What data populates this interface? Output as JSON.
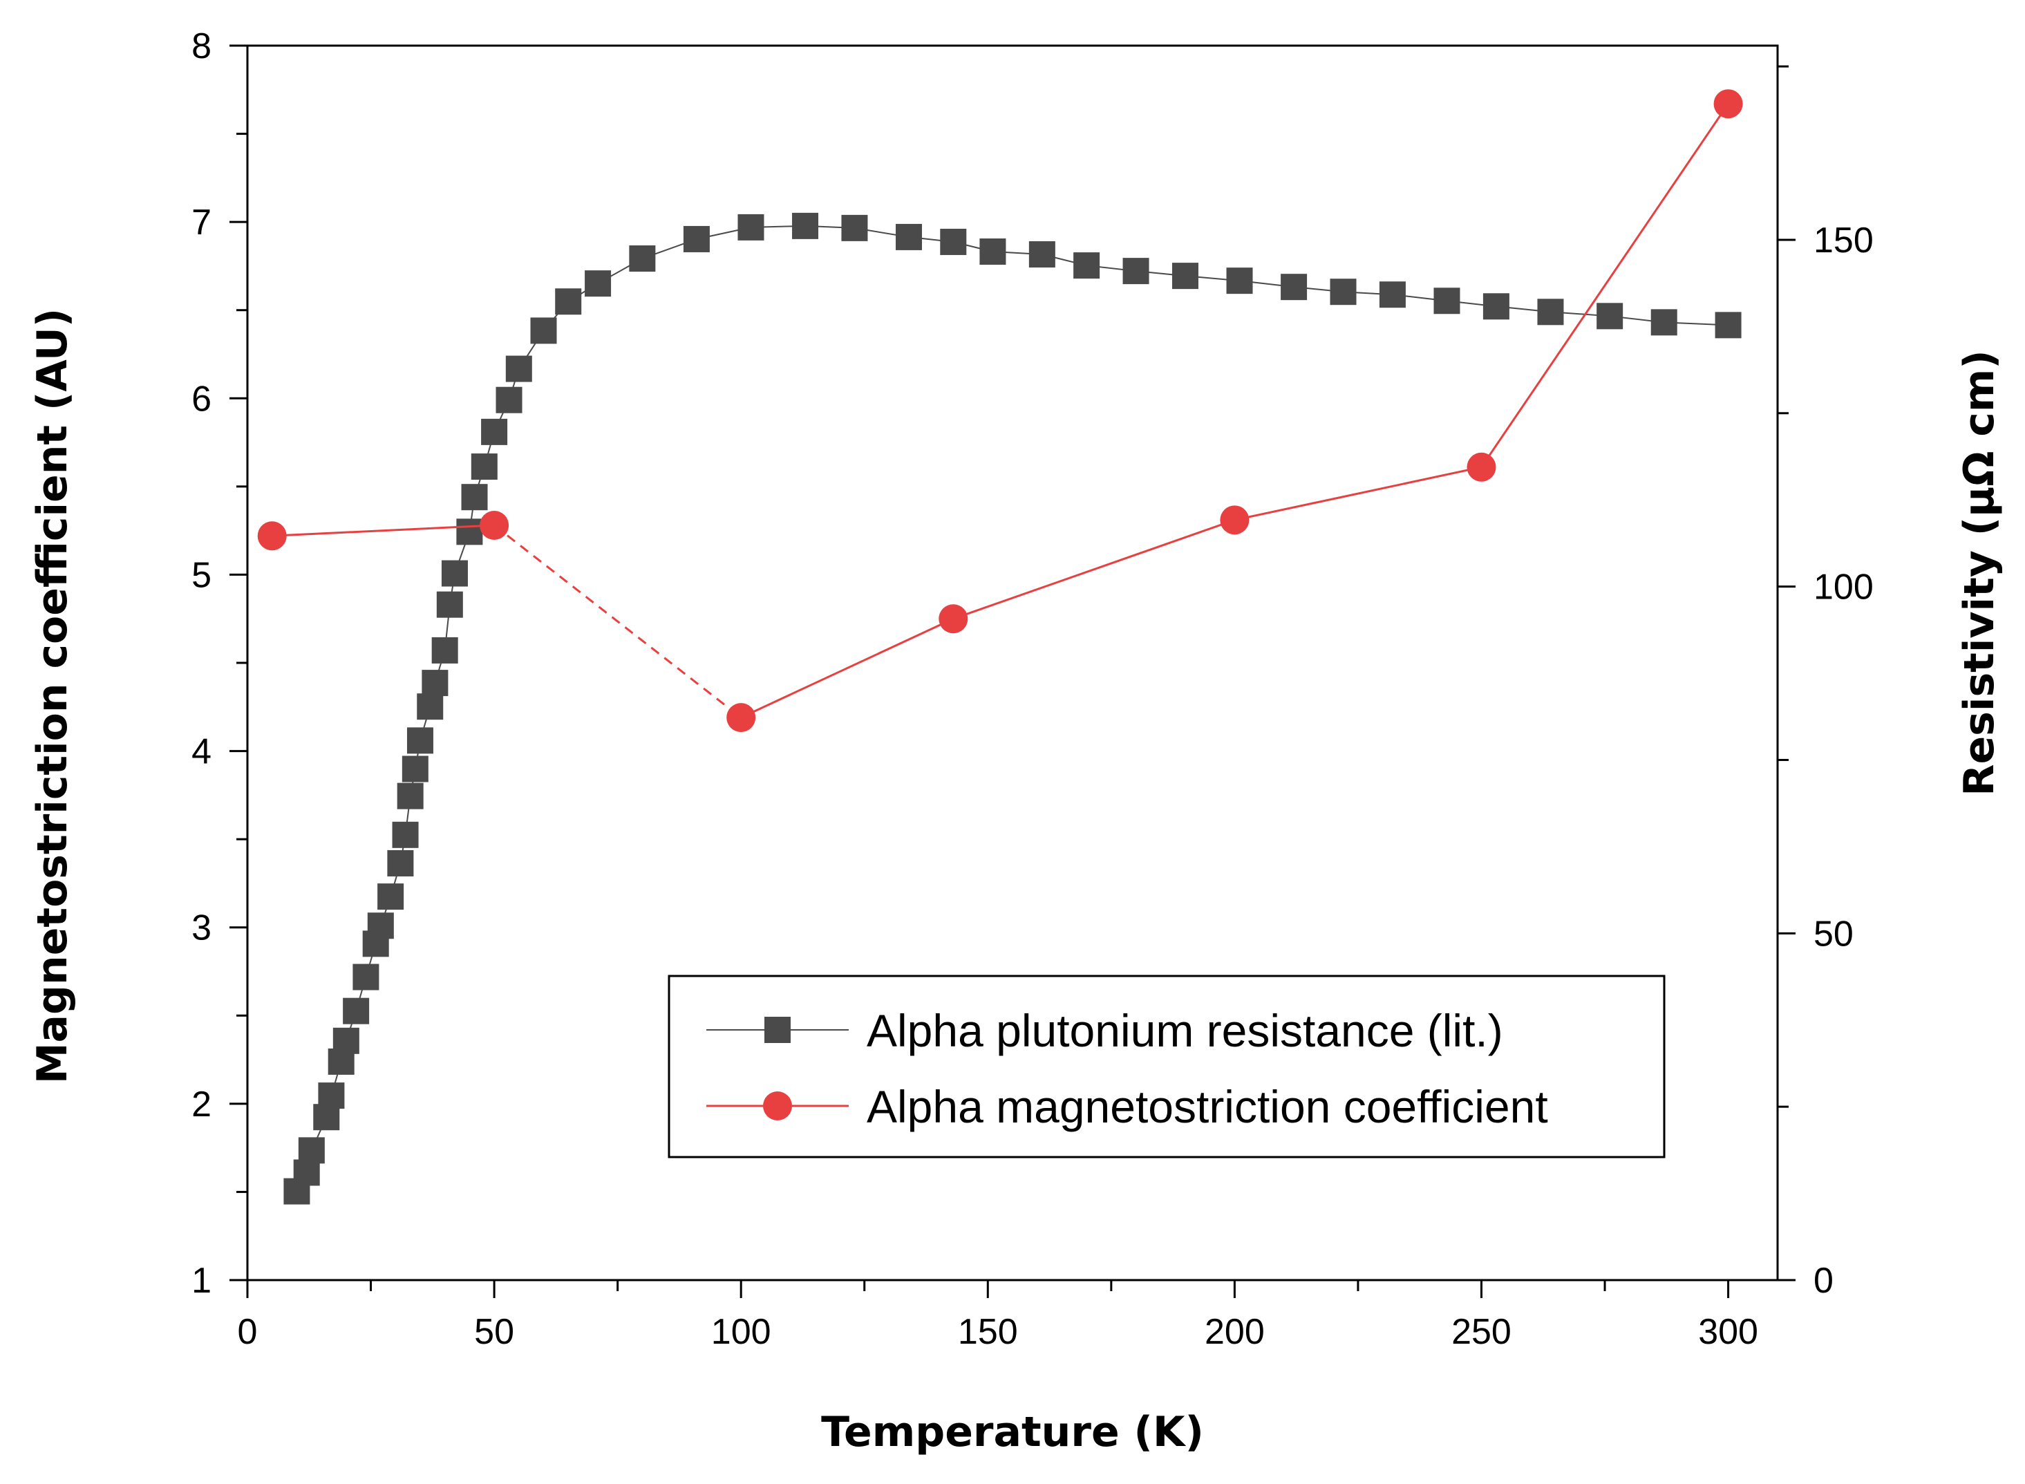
{
  "chart_data": {
    "type": "line",
    "xlabel": "Temperature (K)",
    "ylabel_left": "Magnetostriction coefficient (AU)",
    "ylabel_right": "Resistivity (μΩ cm)",
    "xlim": [
      0,
      310
    ],
    "ylim_left": [
      1,
      8
    ],
    "ylim_right": [
      0,
      178
    ],
    "x_ticks": [
      0,
      50,
      100,
      150,
      200,
      250,
      300
    ],
    "y_left_ticks": [
      1,
      2,
      3,
      4,
      5,
      6,
      7,
      8
    ],
    "y_right_ticks": [
      0,
      50,
      100,
      150
    ],
    "x_tick_labels": [
      "0",
      "50",
      "100",
      "150",
      "200",
      "250",
      "300"
    ],
    "y_left_tick_labels": [
      "1",
      "2",
      "3",
      "4",
      "5",
      "6",
      "7",
      "8"
    ],
    "y_right_tick_labels": [
      "0",
      "50",
      "100",
      "150"
    ],
    "grid": false,
    "legend_position": "bottom-right",
    "series": [
      {
        "name": "Alpha plutonium resistance (lit.)",
        "axis": "right",
        "marker": "square",
        "color": "#4a4a4a",
        "x": [
          10,
          12,
          13,
          16,
          17,
          19,
          20,
          22,
          24,
          26,
          27,
          29,
          31,
          32,
          33,
          34,
          35,
          37,
          38,
          40,
          41,
          42,
          45,
          46,
          48,
          50,
          53,
          55,
          60,
          65,
          71,
          80,
          91,
          102,
          113,
          123,
          134,
          143,
          151,
          161,
          170,
          180,
          190,
          201,
          212,
          222,
          232,
          243,
          253,
          264,
          276,
          287,
          300
        ],
        "y": [
          12.8,
          15.5,
          18.7,
          23.5,
          26.6,
          31.5,
          34.5,
          38.8,
          43.7,
          48.5,
          51.1,
          55.3,
          60.1,
          64.2,
          69.8,
          73.7,
          77.8,
          82.7,
          86.1,
          90.8,
          97.4,
          101.9,
          107.9,
          112.9,
          117.3,
          122.3,
          126.9,
          131.4,
          136.9,
          141.1,
          143.7,
          147.3,
          150.1,
          151.8,
          152.0,
          151.7,
          150.4,
          149.7,
          148.3,
          147.9,
          146.3,
          145.5,
          144.8,
          144.1,
          143.2,
          142.5,
          142.1,
          141.2,
          140.4,
          139.6,
          139.0,
          138.1,
          137.7
        ]
      },
      {
        "name": "Alpha magnetostriction coefficient",
        "axis": "left",
        "marker": "circle",
        "color": "#e84040",
        "x": [
          5,
          50,
          100,
          143,
          200,
          250,
          300
        ],
        "y": [
          5.22,
          5.28,
          4.19,
          4.75,
          5.31,
          5.61,
          7.67
        ],
        "dashed_segments": [
          1
        ]
      }
    ]
  }
}
